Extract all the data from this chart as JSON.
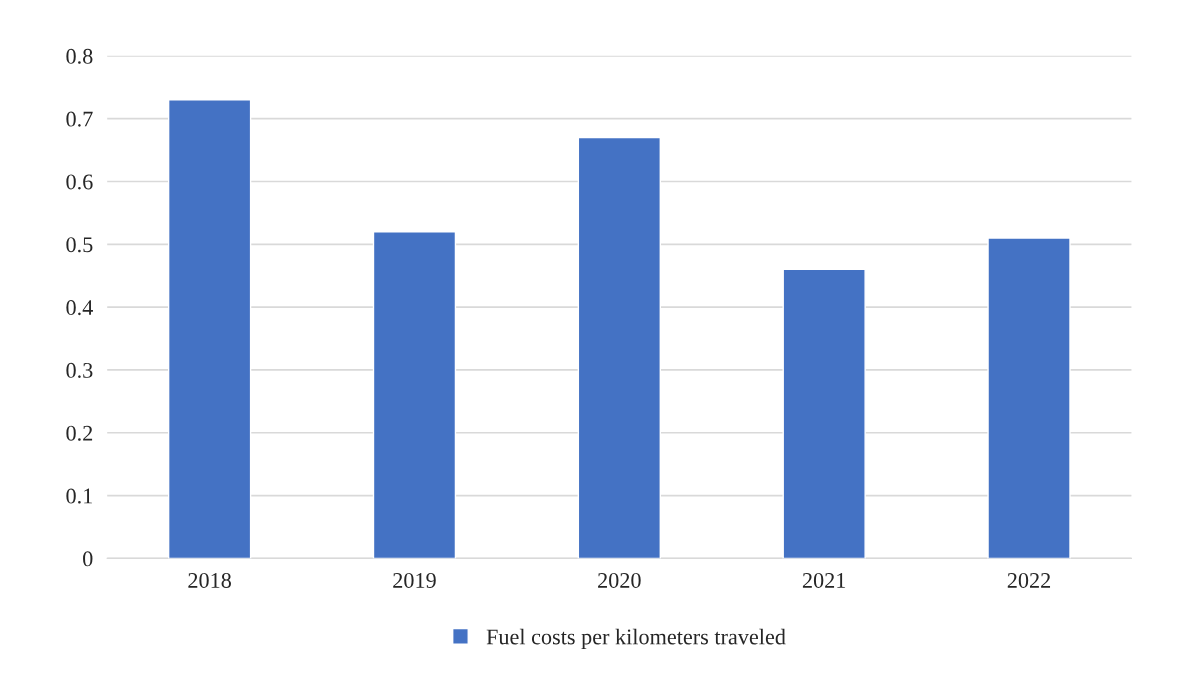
{
  "chart_data": {
    "type": "bar",
    "categories": [
      "2018",
      "2019",
      "2020",
      "2021",
      "2022"
    ],
    "series": [
      {
        "name": "Fuel costs per kilometers traveled",
        "color": "#4472c4",
        "values": [
          0.73,
          0.52,
          0.67,
          0.46,
          0.51
        ]
      }
    ],
    "ylim": [
      0,
      0.8
    ],
    "yticks": [
      0,
      0.1,
      0.2,
      0.3,
      0.4,
      0.5,
      0.6,
      0.7,
      0.8
    ],
    "grid": "y",
    "legend": "bottom"
  }
}
